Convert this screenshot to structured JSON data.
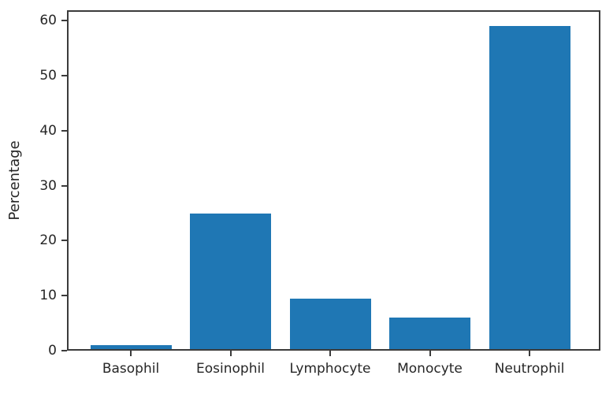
{
  "chart_data": {
    "type": "bar",
    "title": "",
    "categories": [
      "Basophil",
      "Eosinophil",
      "Lymphocyte",
      "Monocyte",
      "Neutrophil"
    ],
    "values": [
      1,
      25,
      9.5,
      6,
      59
    ],
    "xlabel": "",
    "ylabel": "Percentage",
    "yticks": [
      0,
      10,
      20,
      30,
      40,
      50,
      60
    ],
    "ylim": [
      0,
      61.9
    ],
    "grid": false,
    "legend_position": "none",
    "bar_color": "#1f77b4",
    "axis_color": "#3b3b3b",
    "text_color": "#262626",
    "background_color": "#ffffff"
  }
}
